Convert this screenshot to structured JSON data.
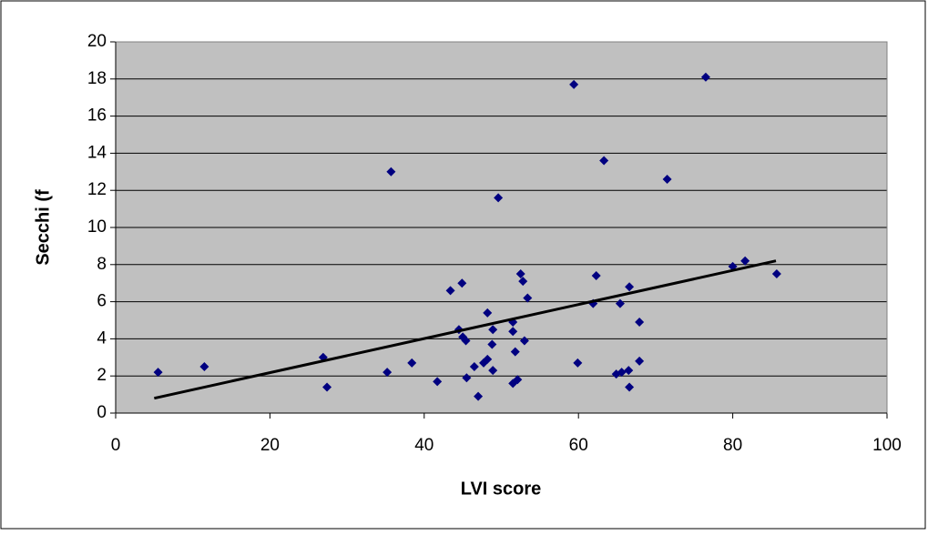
{
  "chart_data": {
    "type": "scatter",
    "x_label": "LVI score",
    "y_label": "Secchi (f",
    "xlim": [
      0,
      100
    ],
    "xticks": [
      0,
      20,
      40,
      60,
      80,
      100
    ],
    "ylim": [
      0,
      20
    ],
    "yticks": [
      0,
      2,
      4,
      6,
      8,
      10,
      12,
      14,
      16,
      18,
      20
    ],
    "grid": true,
    "color": "#000080",
    "plot_background": "#c0c0c0",
    "x": [
      5.5,
      11.5,
      26.9,
      27.4,
      35.2,
      35.7,
      38.4,
      41.7,
      43.4,
      44.9,
      44.5,
      45.0,
      45.4,
      45.5,
      46.5,
      47.0,
      47.7,
      48.2,
      48.9,
      49.6,
      48.2,
      48.8,
      48.9,
      51.5,
      51.5,
      51.8,
      52.1,
      51.5,
      52.5,
      52.8,
      53.0,
      53.4,
      59.4,
      59.9,
      62.3,
      61.9,
      63.3,
      64.9,
      65.6,
      65.4,
      66.5,
      66.6,
      66.6,
      67.9,
      67.9,
      71.5,
      76.5,
      80.0,
      81.6,
      85.7
    ],
    "y": [
      2.2,
      2.5,
      3.0,
      1.4,
      2.2,
      13.0,
      2.7,
      1.7,
      6.6,
      7.0,
      4.5,
      4.1,
      3.9,
      1.9,
      2.5,
      0.9,
      2.7,
      5.4,
      4.5,
      11.6,
      2.9,
      3.7,
      2.3,
      4.9,
      4.4,
      3.3,
      1.8,
      1.6,
      7.5,
      7.1,
      3.9,
      6.2,
      17.7,
      2.7,
      7.4,
      5.9,
      13.6,
      2.1,
      2.2,
      5.9,
      2.3,
      6.8,
      1.4,
      4.9,
      2.8,
      12.6,
      18.1,
      7.9,
      8.2,
      7.5
    ],
    "trend_line": {
      "x": [
        5,
        85.6
      ],
      "y": [
        0.8,
        8.2
      ],
      "color": "#000000"
    }
  }
}
